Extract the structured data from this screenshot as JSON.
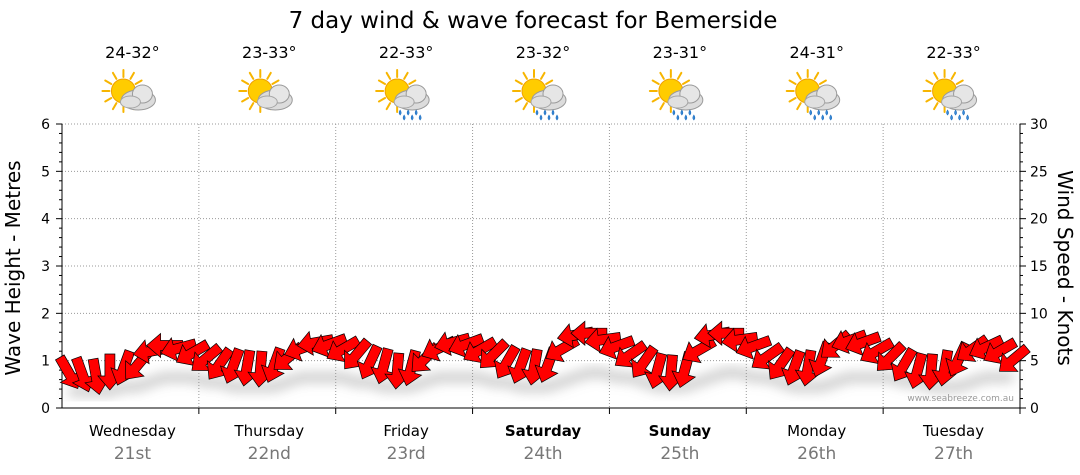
{
  "chart_data": {
    "type": "line",
    "title": "7 day wind & wave forecast for Bemerside",
    "ylabel_left": "Wave Height - Metres",
    "ylabel_right": "Wind Speed - Knots",
    "y_left_range": [
      0,
      6
    ],
    "y_left_ticks": [
      "0",
      "1",
      "2",
      "3",
      "4",
      "5",
      "6"
    ],
    "y_right_range": [
      0,
      30
    ],
    "y_right_ticks": [
      "0",
      "5",
      "10",
      "15",
      "20",
      "25",
      "30"
    ],
    "grid": true,
    "days": [
      {
        "name": "Wednesday",
        "date": "21st",
        "temp": "24-32°",
        "icon": "sun-cloud-icon",
        "bold": false
      },
      {
        "name": "Thursday",
        "date": "22nd",
        "temp": "23-33°",
        "icon": "sun-cloud-icon",
        "bold": false
      },
      {
        "name": "Friday",
        "date": "23rd",
        "temp": "22-33°",
        "icon": "sun-cloud-rain-icon",
        "bold": false
      },
      {
        "name": "Saturday",
        "date": "24th",
        "temp": "23-32°",
        "icon": "sun-cloud-rain-icon",
        "bold": true
      },
      {
        "name": "Sunday",
        "date": "25th",
        "temp": "23-31°",
        "icon": "sun-cloud-rain-icon",
        "bold": true
      },
      {
        "name": "Monday",
        "date": "26th",
        "temp": "24-31°",
        "icon": "sun-cloud-rain-icon",
        "bold": false
      },
      {
        "name": "Tuesday",
        "date": "27th",
        "temp": "22-33°",
        "icon": "sun-cloud-rain-icon",
        "bold": false
      }
    ],
    "series": [
      {
        "name": "Wind",
        "unit": "knots",
        "color": "#ff0000",
        "speed": [
          3.7,
          3.5,
          3.3,
          3.8,
          4.2,
          4.5,
          6.0,
          6.6,
          6.3,
          5.8,
          5.2,
          4.6,
          4.4,
          4.2,
          4.1,
          4.5,
          5.3,
          6.3,
          6.9,
          6.7,
          6.2,
          5.6,
          4.8,
          4.4,
          3.9,
          4.2,
          5.2,
          6.3,
          6.9,
          6.7,
          6.1,
          5.6,
          4.8,
          4.4,
          4.3,
          4.5,
          6.2,
          7.7,
          7.9,
          7.2,
          6.5,
          5.6,
          4.8,
          3.9,
          3.7,
          4.0,
          6.1,
          7.7,
          7.9,
          7.2,
          6.5,
          5.4,
          4.6,
          4.2,
          4.2,
          5.1,
          6.6,
          7.1,
          6.9,
          6.0,
          5.3,
          4.5,
          3.9,
          3.8,
          4.2,
          5.1,
          6.2,
          6.4,
          6.0,
          5.1
        ],
        "direction_deg": [
          150,
          160,
          170,
          180,
          200,
          220,
          260,
          270,
          255,
          240,
          230,
          215,
          200,
          190,
          185,
          200,
          230,
          250,
          260,
          250,
          240,
          220,
          205,
          195,
          185,
          195,
          225,
          245,
          255,
          250,
          240,
          225,
          210,
          200,
          190,
          200,
          240,
          260,
          270,
          262,
          250,
          235,
          215,
          195,
          185,
          195,
          240,
          260,
          270,
          262,
          250,
          235,
          215,
          200,
          190,
          200,
          230,
          250,
          250,
          240,
          225,
          210,
          195,
          185,
          190,
          205,
          235,
          245,
          240,
          230
        ]
      },
      {
        "name": "Wave",
        "unit": "metres",
        "color": "#ff0000",
        "height": [
          0.6,
          0.6,
          0.6,
          0.6,
          0.7,
          0.7,
          0.8,
          0.9,
          0.9,
          0.9,
          0.8,
          0.8,
          0.7,
          0.7,
          0.7,
          0.7,
          0.8,
          0.9,
          0.9,
          0.9,
          0.9,
          0.8,
          0.8,
          0.7,
          0.7,
          0.7,
          0.8,
          0.9,
          0.9,
          0.9,
          0.9,
          0.8,
          0.8,
          0.7,
          0.7,
          0.7,
          0.8,
          0.9,
          1.0,
          1.0,
          0.9,
          0.9,
          0.8,
          0.7,
          0.7,
          0.7,
          0.8,
          0.9,
          1.0,
          1.0,
          0.9,
          0.9,
          0.8,
          0.7,
          0.7,
          0.7,
          0.8,
          0.9,
          0.9,
          0.9,
          0.9,
          0.8,
          0.8,
          0.7,
          0.7,
          0.7,
          0.8,
          0.9,
          0.9,
          0.9
        ]
      }
    ]
  },
  "credit": "www.seabreeze.com.au"
}
